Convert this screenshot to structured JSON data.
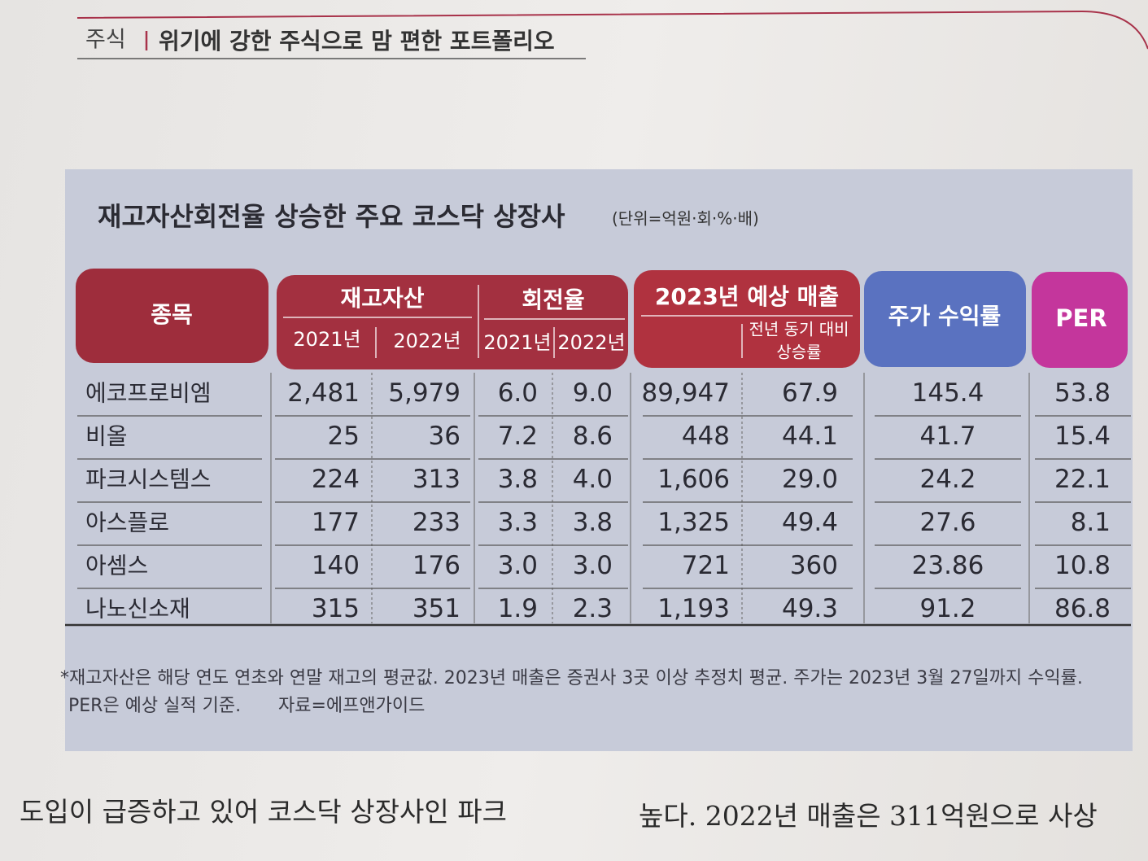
{
  "header": {
    "section": "주식",
    "title": "위기에 강한 주식으로 맘 편한 포트폴리오"
  },
  "table": {
    "title": "재고자산회전율 상승한 주요 코스닥 상장사",
    "unit": "(단위=억원·회·%·배)",
    "columns": {
      "name": "종목",
      "inventory": "재고자산",
      "inventory_years": [
        "2021년",
        "2022년"
      ],
      "turnover": "회전율",
      "turnover_years": [
        "2021년",
        "2022년"
      ],
      "sales": "2023년 예상 매출",
      "sales_growth": [
        "전년 동기 대비",
        "상승률"
      ],
      "return": "주가 수익률",
      "per": "PER"
    },
    "rows": [
      [
        "에코프로비엠",
        "2,481",
        "5,979",
        "6.0",
        "9.0",
        "89,947",
        "67.9",
        "145.4",
        "53.8"
      ],
      [
        "비올",
        "25",
        "36",
        "7.2",
        "8.6",
        "448",
        "44.1",
        "41.7",
        "15.4"
      ],
      [
        "파크시스템스",
        "224",
        "313",
        "3.8",
        "4.0",
        "1,606",
        "29.0",
        "24.2",
        "22.1"
      ],
      [
        "아스플로",
        "177",
        "233",
        "3.3",
        "3.8",
        "1,325",
        "49.4",
        "27.6",
        "8.1"
      ],
      [
        "아셈스",
        "140",
        "176",
        "3.0",
        "3.0",
        "721",
        "360",
        "23.86",
        "10.8"
      ],
      [
        "나노신소재",
        "315",
        "351",
        "1.9",
        "2.3",
        "1,193",
        "49.3",
        "91.2",
        "86.8"
      ]
    ],
    "footnote": [
      "*재고자산은 해당 연도 연초와 연말 재고의 평균값. 2023년 매출은 증권사 3곳 이상 추정치 평균. 주가는 2023년 3월 27일까지 수익률.",
      "PER은 예상 실적 기준."
    ],
    "source": "자료=에프앤가이드"
  },
  "body": [
    "도입이 급증하고 있어 코스닥 상장사인 파크",
    "높다. 2022년 매출은 311억원으로 사상"
  ]
}
